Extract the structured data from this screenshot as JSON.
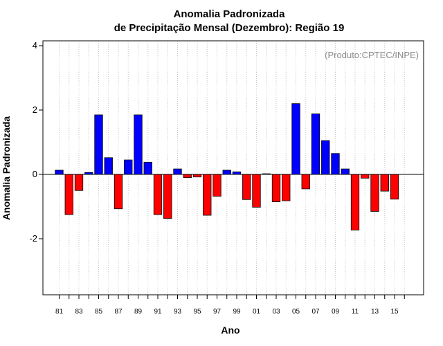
{
  "chart_data": {
    "type": "bar",
    "title": "Anomalia Padronizada",
    "subtitle": "de Precipitação Mensal (Dezembro): Região 19",
    "xlabel": "Ano",
    "ylabel": "Anomalia Padronizada",
    "credit": "(Produto:CPTEC/INPE)",
    "ylim": [
      -3.7,
      4.2
    ],
    "yticks": [
      -2,
      0,
      2,
      4
    ],
    "grid": "vertical dotted",
    "categories": [
      "81",
      "82",
      "83",
      "84",
      "85",
      "86",
      "87",
      "88",
      "89",
      "90",
      "91",
      "92",
      "93",
      "94",
      "95",
      "96",
      "97",
      "98",
      "99",
      "00",
      "01",
      "02",
      "03",
      "04",
      "05",
      "06",
      "07",
      "08",
      "09",
      "10",
      "11",
      "12",
      "13",
      "14",
      "15",
      "16"
    ],
    "xtick_labels": [
      "81",
      "83",
      "85",
      "87",
      "89",
      "91",
      "93",
      "95",
      "97",
      "99",
      "01",
      "03",
      "05",
      "07",
      "09",
      "11",
      "13",
      "15"
    ],
    "values": [
      0.13,
      -1.25,
      -0.5,
      0.06,
      1.85,
      0.52,
      -1.07,
      0.45,
      1.85,
      0.38,
      -1.25,
      -1.37,
      0.17,
      -0.1,
      -0.08,
      -1.27,
      -0.68,
      0.13,
      0.08,
      -0.78,
      -1.02,
      0.02,
      -0.85,
      -0.82,
      2.2,
      -0.45,
      1.88,
      1.05,
      0.65,
      0.17,
      -1.73,
      -0.12,
      -1.15,
      -0.52,
      -0.77,
      null
    ],
    "colors": {
      "positive": "#0000ff",
      "negative": "#ff0000"
    }
  }
}
